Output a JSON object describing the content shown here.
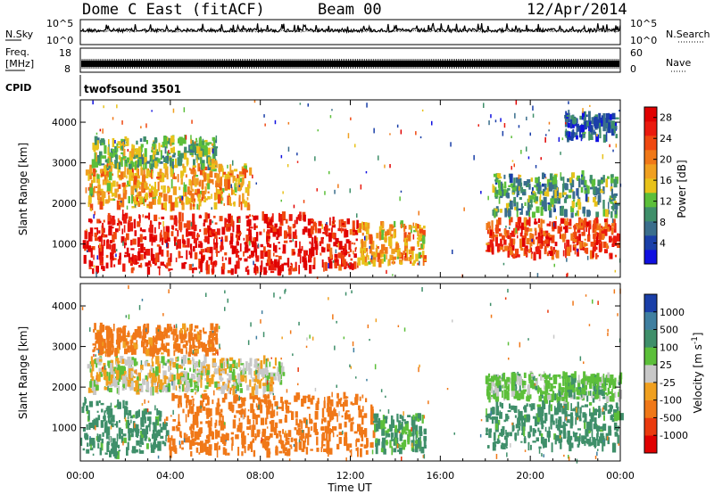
{
  "header": {
    "title": "Dome C East (fitACF)",
    "beam": "Beam 00",
    "date": "12/Apr/2014"
  },
  "nsky_panel": {
    "left_label": "N.Sky",
    "right_label": "N.Search",
    "left_ticks": [
      "10^5",
      "10^0"
    ],
    "right_ticks": [
      "10^5",
      "10^0"
    ]
  },
  "freq_panel": {
    "left_label_1": "Freq.",
    "left_label_2": "[MHz]",
    "right_label": "Nave",
    "left_ticks": [
      "18",
      "8"
    ],
    "right_ticks": [
      "60",
      "0"
    ]
  },
  "cpid_panel": {
    "label": "CPID",
    "text": "twofsound 3501"
  },
  "power_panel": {
    "ylabel": "Slant Range [km]",
    "yticks": [
      "1000",
      "2000",
      "3000",
      "4000"
    ],
    "colorbar_label": "Power [dB]",
    "colorbar_ticks": [
      "4",
      "8",
      "12",
      "16",
      "20",
      "24",
      "28"
    ],
    "colors": [
      "#1010e0",
      "#1a3fa8",
      "#3a6e8c",
      "#3f8f6a",
      "#5cbf3a",
      "#e8c21a",
      "#f0a020",
      "#f07818",
      "#ef4810",
      "#ea1a0e",
      "#e00000"
    ]
  },
  "velocity_panel": {
    "ylabel": "Slant Range [km]",
    "yticks": [
      "1000",
      "2000",
      "3000",
      "4000"
    ],
    "colorbar_label": "Velocity [m s",
    "colorbar_label_sup": "-1",
    "colorbar_label_end": "]",
    "colorbar_ticks": [
      "1000",
      "500",
      "100",
      "25",
      "-25",
      "-100",
      "-500",
      "-1000"
    ],
    "colors": [
      "#1a3fa8",
      "#3f7fa0",
      "#3f8f6a",
      "#5cbf3a",
      "#c8c8c8",
      "#f0a020",
      "#f07818",
      "#ea3a0e",
      "#e00000"
    ]
  },
  "xaxis": {
    "xlabel": "Time UT",
    "ticks": [
      "00:00",
      "04:00",
      "08:00",
      "12:00",
      "16:00",
      "20:00",
      "00:00"
    ]
  },
  "chart_data": {
    "type": "heatmap",
    "title": "Dome C East (fitACF)",
    "subtitle": "Beam 00",
    "date": "12/Apr/2014",
    "x_range_hours": [
      0,
      24
    ],
    "y_range_km": [
      180,
      4550
    ],
    "xlabel": "Time UT",
    "ylabel": "Slant Range [km]",
    "xticks": [
      "00:00",
      "04:00",
      "08:00",
      "12:00",
      "16:00",
      "20:00",
      "00:00"
    ],
    "yticks": [
      1000,
      2000,
      3000,
      4000
    ],
    "power": {
      "colorbar_label": "Power [dB]",
      "range": [
        0,
        30
      ],
      "ticks": [
        4,
        8,
        12,
        16,
        20,
        24,
        28
      ],
      "regions": [
        {
          "t": [
            0.1,
            10.2
          ],
          "r": [
            300,
            1700
          ],
          "value": 27
        },
        {
          "t": [
            10.2,
            12.3
          ],
          "r": [
            400,
            1600
          ],
          "value": 26
        },
        {
          "t": [
            12.3,
            15.3
          ],
          "r": [
            500,
            1500
          ],
          "value": 18
        },
        {
          "t": [
            0.2,
            7.5
          ],
          "r": [
            1900,
            2900
          ],
          "value": 18
        },
        {
          "t": [
            0.5,
            6.0
          ],
          "r": [
            2900,
            3600
          ],
          "value": 12
        },
        {
          "t": [
            18.0,
            23.9
          ],
          "r": [
            700,
            1600
          ],
          "value": 24
        },
        {
          "t": [
            18.3,
            23.8
          ],
          "r": [
            1700,
            2700
          ],
          "value": 10
        },
        {
          "t": [
            21.5,
            23.8
          ],
          "r": [
            3600,
            4200
          ],
          "value": 6
        }
      ]
    },
    "velocity": {
      "colorbar_label": "Velocity [m s^-1]",
      "levels": [
        1000,
        500,
        100,
        25,
        -25,
        -100,
        -500,
        -1000
      ],
      "regions": [
        {
          "t": [
            0.0,
            2.0
          ],
          "r": [
            300,
            1700
          ],
          "value": 150
        },
        {
          "t": [
            2.0,
            3.8
          ],
          "r": [
            400,
            1400
          ],
          "value": 150
        },
        {
          "t": [
            3.8,
            13.0
          ],
          "r": [
            350,
            1800
          ],
          "value": -300
        },
        {
          "t": [
            13.0,
            15.3
          ],
          "r": [
            400,
            1300
          ],
          "value": 120
        },
        {
          "t": [
            0.3,
            9.0
          ],
          "r": [
            1900,
            2700
          ],
          "value": 0
        },
        {
          "t": [
            18.0,
            24.0
          ],
          "r": [
            500,
            1600
          ],
          "value": 150
        },
        {
          "t": [
            18.0,
            24.0
          ],
          "r": [
            1700,
            2300
          ],
          "value": 60
        },
        {
          "t": [
            0.5,
            6.0
          ],
          "r": [
            2800,
            3500
          ],
          "value": -150
        }
      ]
    }
  }
}
